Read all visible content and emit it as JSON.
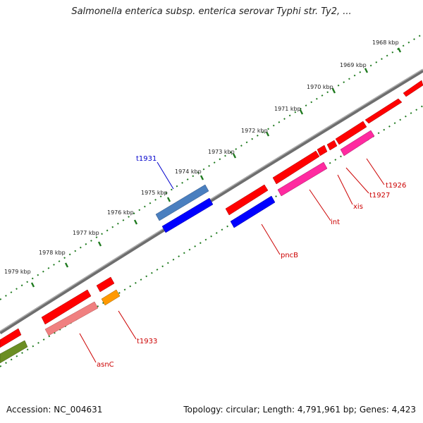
{
  "title": "Salmonella enterica subsp. enterica serovar Typhi str. Ty2, ...",
  "footer": {
    "accession": "Accession: NC_004631",
    "summary": "Topology: circular; Length: 4,791,961 bp; Genes: 4,423"
  },
  "kbp_labels": [
    "1968 kbp",
    "1969 kbp",
    "1970 kbp",
    "1971 kbp",
    "1972 kbp",
    "1973 kbp",
    "1974 kbp",
    "1975 kbp",
    "1976 kbp",
    "1977 kbp",
    "1978 kbp",
    "1979 kbp"
  ],
  "gene_labels": [
    {
      "name": "t1931",
      "color": "#0000cc"
    },
    {
      "name": "t1926",
      "color": "#cc0000"
    },
    {
      "name": "t1927",
      "color": "#cc0000"
    },
    {
      "name": "xis",
      "color": "#cc0000"
    },
    {
      "name": "int",
      "color": "#cc0000"
    },
    {
      "name": "pncB",
      "color": "#cc0000"
    },
    {
      "name": "t1933",
      "color": "#cc0000"
    },
    {
      "name": "asnC",
      "color": "#cc0000"
    }
  ],
  "colors": {
    "backbone": "#7a7a7a",
    "tick_outer": "#1f7a1f",
    "gene_red": "#ff0000",
    "gene_blue": "#0000ff",
    "gene_steelblue": "#4a7fbf",
    "gene_magenta": "#ff2aa0",
    "gene_pink": "#f08080",
    "gene_orange": "#ff9900",
    "gene_olive": "#6b8e23"
  }
}
